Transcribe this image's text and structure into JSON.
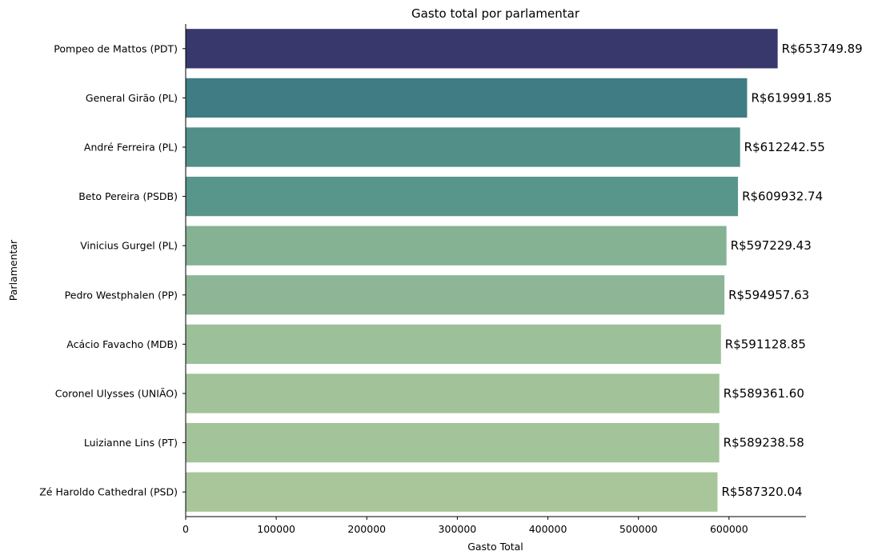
{
  "chart_data": {
    "type": "bar",
    "orientation": "horizontal",
    "title": "Gasto total por parlamentar",
    "xlabel": "Gasto Total",
    "ylabel": "Parlamentar",
    "xlim": [
      0,
      685000
    ],
    "xticks": [
      0,
      100000,
      200000,
      300000,
      400000,
      500000,
      600000
    ],
    "grid": false,
    "categories": [
      "Pompeo de Mattos (PDT)",
      "General Girão (PL)",
      "André Ferreira (PL)",
      "Beto Pereira (PSDB)",
      "Vinicius Gurgel (PL)",
      "Pedro Westphalen (PP)",
      "Acácio Favacho (MDB)",
      "Coronel Ulysses (UNIÃO)",
      "Luizianne Lins (PT)",
      "Zé Haroldo Cathedral (PSD)"
    ],
    "values": [
      653749.89,
      619991.85,
      612242.55,
      609932.74,
      597229.43,
      594957.63,
      591128.85,
      589361.6,
      589238.58,
      587320.04
    ],
    "data_labels": [
      "R$653749.89",
      "R$619991.85",
      "R$612242.55",
      "R$609932.74",
      "R$597229.43",
      "R$594957.63",
      "R$591128.85",
      "R$589361.60",
      "R$589238.58",
      "R$587320.04"
    ],
    "colors": [
      "#39386c",
      "#3f7c83",
      "#518f88",
      "#58958b",
      "#84b293",
      "#8db596",
      "#9bc09a",
      "#a2c39a",
      "#a3c49a",
      "#a8c69a"
    ]
  }
}
